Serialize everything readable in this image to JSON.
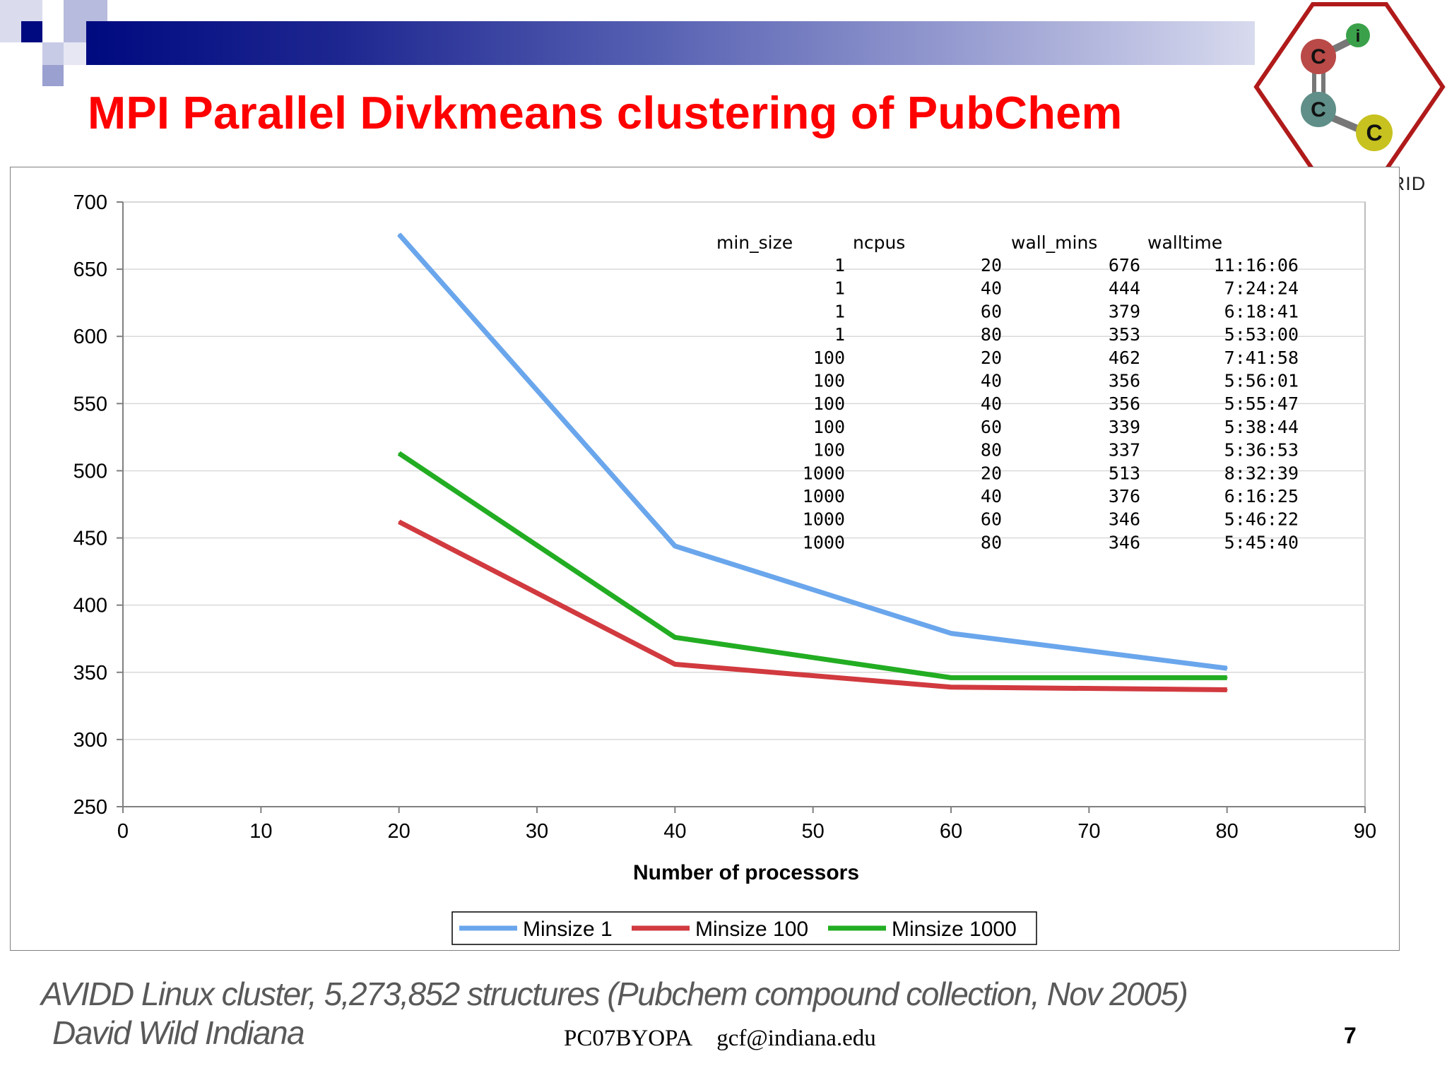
{
  "slide": {
    "title": "MPI Parallel Divkmeans clustering of PubChem",
    "logo_text": "CHEMBIOGRID",
    "logo_letters": [
      "C",
      "i",
      "C",
      "C"
    ],
    "caption_line1": "AVIDD Linux cluster, 5,273,852 structures (Pubchem compound collection, Nov 2005)",
    "caption_line2": "David Wild Indiana",
    "footer_code": "PC07BYOPA",
    "footer_email": "gcf@indiana.edu",
    "page_number": "7"
  },
  "chart_data": {
    "type": "line",
    "xlabel": "Number of processors",
    "ylabel": "",
    "xlim": [
      0,
      90
    ],
    "ylim": [
      250,
      700
    ],
    "xticks": [
      0,
      10,
      20,
      30,
      40,
      50,
      60,
      70,
      80,
      90
    ],
    "yticks": [
      250,
      300,
      350,
      400,
      450,
      500,
      550,
      600,
      650,
      700
    ],
    "grid": "horizontal",
    "legend_position": "bottom",
    "series": [
      {
        "name": "Minsize 1",
        "color": "#6aa6ec",
        "x": [
          20,
          40,
          60,
          80
        ],
        "y": [
          676,
          444,
          379,
          353
        ]
      },
      {
        "name": "Minsize 100",
        "color": "#d13a3f",
        "x": [
          20,
          40,
          60,
          80
        ],
        "y": [
          462,
          356,
          339,
          337
        ]
      },
      {
        "name": "Minsize 1000",
        "color": "#22ad22",
        "x": [
          20,
          40,
          60,
          80
        ],
        "y": [
          513,
          376,
          346,
          346
        ]
      }
    ],
    "table": {
      "headers": [
        "min_size",
        "ncpus",
        "wall_mins",
        "walltime"
      ],
      "rows": [
        [
          "1",
          "20",
          "676",
          "11:16:06"
        ],
        [
          "1",
          "40",
          "444",
          "7:24:24"
        ],
        [
          "1",
          "60",
          "379",
          "6:18:41"
        ],
        [
          "1",
          "80",
          "353",
          "5:53:00"
        ],
        [
          "100",
          "20",
          "462",
          "7:41:58"
        ],
        [
          "100",
          "40",
          "356",
          "5:56:01"
        ],
        [
          "100",
          "40",
          "356",
          "5:55:47"
        ],
        [
          "100",
          "60",
          "339",
          "5:38:44"
        ],
        [
          "100",
          "80",
          "337",
          "5:36:53"
        ],
        [
          "1000",
          "20",
          "513",
          "8:32:39"
        ],
        [
          "1000",
          "40",
          "376",
          "6:16:25"
        ],
        [
          "1000",
          "60",
          "346",
          "5:46:22"
        ],
        [
          "1000",
          "80",
          "346",
          "5:45:40"
        ]
      ]
    }
  }
}
